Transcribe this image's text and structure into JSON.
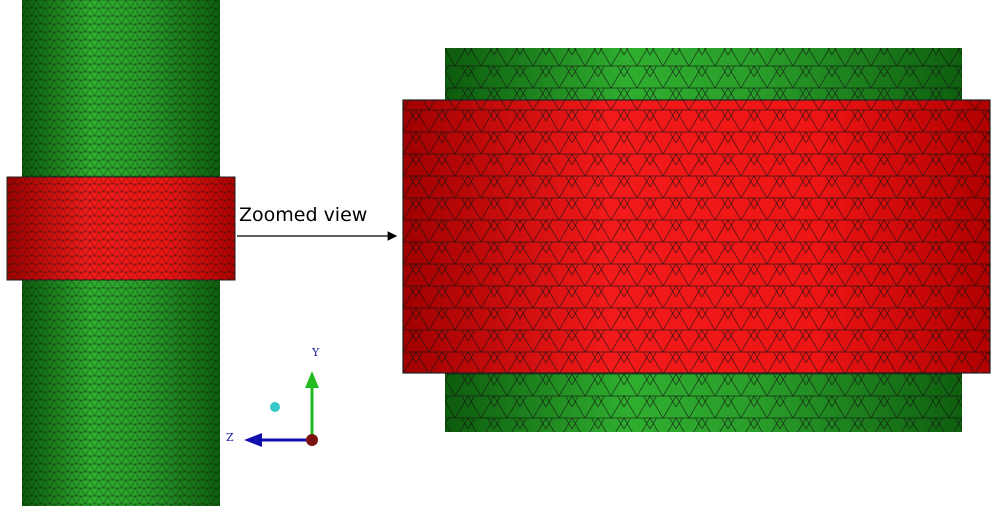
{
  "annotation": "Zoomed view",
  "axes": {
    "y": "Y",
    "z": "Z"
  }
}
